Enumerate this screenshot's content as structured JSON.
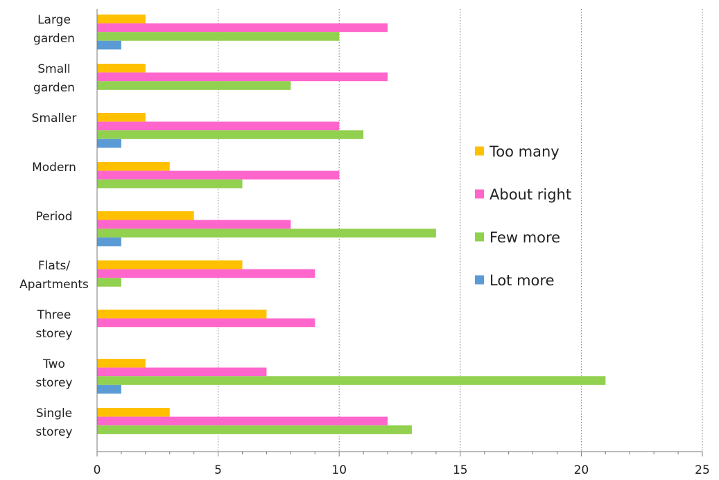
{
  "chart_data": {
    "type": "bar",
    "orientation": "horizontal",
    "categories": [
      [
        "Large",
        "garden"
      ],
      [
        "Small",
        "garden"
      ],
      [
        "Smaller"
      ],
      [
        "Modern"
      ],
      [
        "Period"
      ],
      [
        "Flats/",
        "Apartments"
      ],
      [
        "Three",
        "storey"
      ],
      [
        "Two",
        "storey"
      ],
      [
        "Single",
        "storey"
      ]
    ],
    "series": [
      {
        "name": "Too many",
        "color": "#ffc000",
        "values": [
          2,
          2,
          2,
          3,
          4,
          6,
          7,
          2,
          3
        ]
      },
      {
        "name": "About right",
        "color": "#ff66cc",
        "values": [
          12,
          12,
          10,
          10,
          8,
          9,
          9,
          7,
          12
        ]
      },
      {
        "name": "Few more",
        "color": "#92d050",
        "values": [
          10,
          8,
          11,
          6,
          14,
          1,
          0,
          21,
          13
        ]
      },
      {
        "name": "Lot more",
        "color": "#5b9bd5",
        "values": [
          1,
          0,
          1,
          0,
          1,
          0,
          0,
          1,
          0
        ]
      }
    ],
    "xlim": [
      0,
      25
    ],
    "xticks": [
      0,
      5,
      10,
      15,
      20,
      25
    ],
    "grid": "vertical dotted major gridlines",
    "legend_position": "right-center",
    "title": "",
    "xlabel": "",
    "ylabel": ""
  }
}
